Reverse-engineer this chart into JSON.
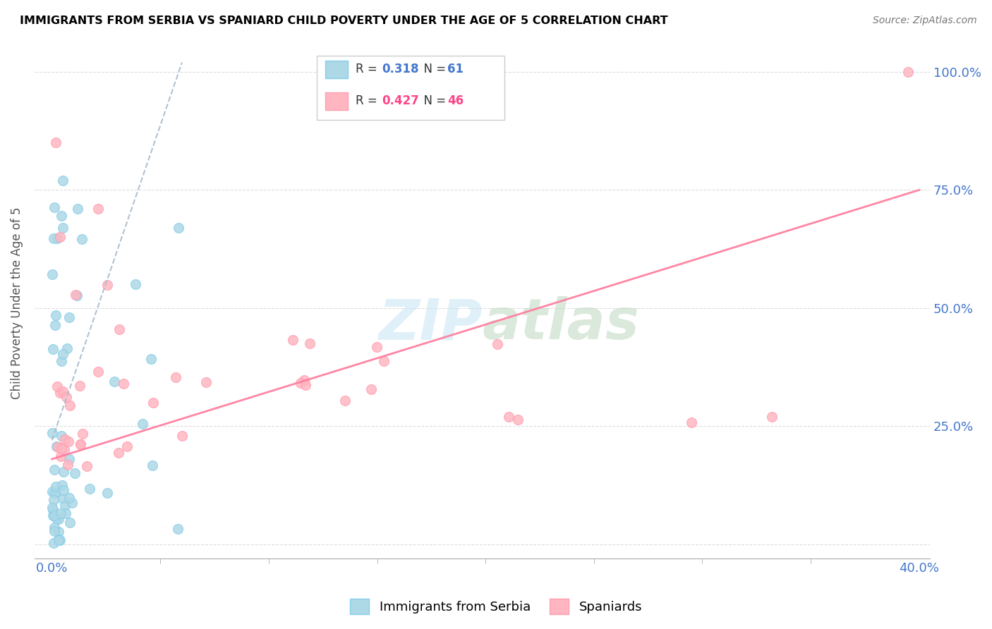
{
  "title": "IMMIGRANTS FROM SERBIA VS SPANIARD CHILD POVERTY UNDER THE AGE OF 5 CORRELATION CHART",
  "source": "Source: ZipAtlas.com",
  "ylabel": "Child Poverty Under the Age of 5",
  "legend_label1": "Immigrants from Serbia",
  "legend_label2": "Spaniards",
  "r1": 0.318,
  "n1": 61,
  "r2": 0.427,
  "n2": 46,
  "color_serbia_fill": "#ADD8E6",
  "color_serbia_edge": "#87CEEB",
  "color_spain_fill": "#FFB6C1",
  "color_spain_edge": "#FF9DB0",
  "color_serbia_trend": "#7799BB",
  "color_spain_trend": "#FF80A0",
  "color_blue_text": "#4477CC",
  "color_pink_text": "#FF4488",
  "xlim": [
    0.0,
    0.4
  ],
  "ylim": [
    0.0,
    1.05
  ],
  "ytick_vals": [
    0.0,
    0.25,
    0.5,
    0.75,
    1.0
  ],
  "ytick_labels": [
    "",
    "25.0%",
    "50.0%",
    "75.0%",
    "100.0%"
  ],
  "xtick_vals": [
    0.0,
    0.4
  ],
  "xtick_labels": [
    "0.0%",
    "40.0%"
  ],
  "serbia_trend_x": [
    0.0,
    0.06
  ],
  "serbia_trend_y": [
    0.22,
    1.02
  ],
  "spain_trend_x": [
    0.0,
    0.4
  ],
  "spain_trend_y": [
    0.18,
    0.75
  ]
}
